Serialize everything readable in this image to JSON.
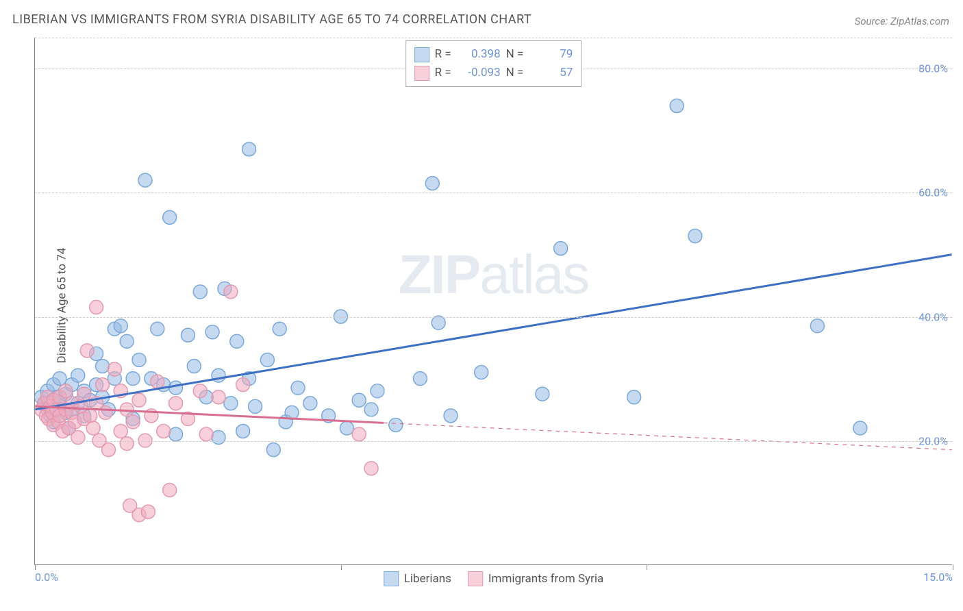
{
  "title": "LIBERIAN VS IMMIGRANTS FROM SYRIA DISABILITY AGE 65 TO 74 CORRELATION CHART",
  "source": "Source: ZipAtlas.com",
  "watermark_bold": "ZIP",
  "watermark_light": "atlas",
  "chart": {
    "type": "scatter",
    "ylabel": "Disability Age 65 to 74",
    "xlim": [
      0,
      15
    ],
    "ylim": [
      0,
      85
    ],
    "x_ticks": [
      0,
      5,
      10,
      15
    ],
    "x_tick_labels": [
      "0.0%",
      "",
      "",
      "15.0%"
    ],
    "y_ticks": [
      20,
      40,
      60,
      80
    ],
    "y_tick_labels": [
      "20.0%",
      "40.0%",
      "60.0%",
      "80.0%"
    ],
    "background_color": "#ffffff",
    "grid_color": "#cccccc",
    "grid_dash": "4,4",
    "axis_color": "#888888",
    "label_color": "#555555",
    "tick_label_color": "#6e94d4",
    "marker_radius": 10,
    "marker_stroke_width": 1.5,
    "trend_line_width": 3,
    "series": [
      {
        "name": "Liberians",
        "fill": "rgba(150,185,230,0.55)",
        "stroke": "#7aa8d8",
        "line_color": "#3d6fc5",
        "r_value": "0.398",
        "n_value": "79",
        "trend": {
          "x1": 0,
          "y1": 25,
          "x2": 15,
          "y2": 50,
          "solid_until_x": 15
        },
        "points": [
          [
            0.1,
            27
          ],
          [
            0.15,
            26
          ],
          [
            0.2,
            28
          ],
          [
            0.2,
            25
          ],
          [
            0.25,
            24
          ],
          [
            0.3,
            29
          ],
          [
            0.3,
            23
          ],
          [
            0.35,
            27
          ],
          [
            0.4,
            26
          ],
          [
            0.4,
            30
          ],
          [
            0.5,
            24.5
          ],
          [
            0.5,
            27.5
          ],
          [
            0.55,
            22
          ],
          [
            0.6,
            29
          ],
          [
            0.6,
            25
          ],
          [
            0.7,
            26
          ],
          [
            0.7,
            30.5
          ],
          [
            0.8,
            28
          ],
          [
            0.8,
            24
          ],
          [
            0.9,
            26.5
          ],
          [
            1.0,
            34
          ],
          [
            1.0,
            29
          ],
          [
            1.1,
            27
          ],
          [
            1.1,
            32
          ],
          [
            1.2,
            25
          ],
          [
            1.3,
            38
          ],
          [
            1.3,
            30
          ],
          [
            1.4,
            38.5
          ],
          [
            1.5,
            36
          ],
          [
            1.6,
            23.5
          ],
          [
            1.6,
            30
          ],
          [
            1.7,
            33
          ],
          [
            1.8,
            62
          ],
          [
            1.9,
            30
          ],
          [
            2.0,
            38
          ],
          [
            2.1,
            29
          ],
          [
            2.2,
            56
          ],
          [
            2.3,
            21
          ],
          [
            2.3,
            28.5
          ],
          [
            2.5,
            37
          ],
          [
            2.6,
            32
          ],
          [
            2.7,
            44
          ],
          [
            2.8,
            27
          ],
          [
            2.9,
            37.5
          ],
          [
            3.0,
            30.5
          ],
          [
            3.0,
            20.5
          ],
          [
            3.1,
            44.5
          ],
          [
            3.2,
            26
          ],
          [
            3.3,
            36
          ],
          [
            3.4,
            21.5
          ],
          [
            3.5,
            67
          ],
          [
            3.5,
            30
          ],
          [
            3.6,
            25.5
          ],
          [
            3.8,
            33
          ],
          [
            3.9,
            18.5
          ],
          [
            4.0,
            38
          ],
          [
            4.1,
            23
          ],
          [
            4.2,
            24.5
          ],
          [
            4.3,
            28.5
          ],
          [
            4.5,
            26
          ],
          [
            4.8,
            24
          ],
          [
            5.0,
            40
          ],
          [
            5.1,
            22
          ],
          [
            5.3,
            26.5
          ],
          [
            5.5,
            25
          ],
          [
            5.6,
            28
          ],
          [
            5.9,
            22.5
          ],
          [
            6.3,
            30
          ],
          [
            6.5,
            61.5
          ],
          [
            6.6,
            39
          ],
          [
            6.8,
            24
          ],
          [
            7.3,
            31
          ],
          [
            8.3,
            27.5
          ],
          [
            8.6,
            51
          ],
          [
            9.8,
            27
          ],
          [
            10.5,
            74
          ],
          [
            10.8,
            53
          ],
          [
            12.8,
            38.5
          ],
          [
            13.5,
            22
          ]
        ]
      },
      {
        "name": "Immigrants from Syria",
        "fill": "rgba(240,170,190,0.55)",
        "stroke": "#e39ab0",
        "line_color": "#d76e8f",
        "r_value": "-0.093",
        "n_value": "57",
        "trend": {
          "x1": 0,
          "y1": 25.5,
          "x2": 15,
          "y2": 18.5,
          "solid_until_x": 5.7
        },
        "points": [
          [
            0.1,
            25
          ],
          [
            0.15,
            26
          ],
          [
            0.18,
            24
          ],
          [
            0.2,
            27
          ],
          [
            0.22,
            23.5
          ],
          [
            0.25,
            25.5
          ],
          [
            0.28,
            24.5
          ],
          [
            0.3,
            26.5
          ],
          [
            0.3,
            22.5
          ],
          [
            0.35,
            25
          ],
          [
            0.38,
            23
          ],
          [
            0.4,
            27
          ],
          [
            0.4,
            24
          ],
          [
            0.45,
            21.5
          ],
          [
            0.5,
            25
          ],
          [
            0.5,
            28
          ],
          [
            0.55,
            22
          ],
          [
            0.6,
            24.5
          ],
          [
            0.6,
            26
          ],
          [
            0.65,
            23
          ],
          [
            0.7,
            20.5
          ],
          [
            0.75,
            25.5
          ],
          [
            0.8,
            27.5
          ],
          [
            0.8,
            23.5
          ],
          [
            0.85,
            34.5
          ],
          [
            0.9,
            24
          ],
          [
            0.95,
            22
          ],
          [
            1.0,
            41.5
          ],
          [
            1.0,
            26
          ],
          [
            1.05,
            20
          ],
          [
            1.1,
            29
          ],
          [
            1.15,
            24.5
          ],
          [
            1.2,
            18.5
          ],
          [
            1.3,
            31.5
          ],
          [
            1.4,
            21.5
          ],
          [
            1.4,
            28
          ],
          [
            1.5,
            25
          ],
          [
            1.5,
            19.5
          ],
          [
            1.55,
            9.5
          ],
          [
            1.6,
            23
          ],
          [
            1.7,
            8
          ],
          [
            1.7,
            26.5
          ],
          [
            1.8,
            20
          ],
          [
            1.85,
            8.5
          ],
          [
            1.9,
            24
          ],
          [
            2.0,
            29.5
          ],
          [
            2.1,
            21.5
          ],
          [
            2.2,
            12
          ],
          [
            2.3,
            26
          ],
          [
            2.5,
            23.5
          ],
          [
            2.7,
            28
          ],
          [
            2.8,
            21
          ],
          [
            3.0,
            27
          ],
          [
            3.2,
            44
          ],
          [
            3.4,
            29
          ],
          [
            5.3,
            21
          ],
          [
            5.5,
            15.5
          ]
        ]
      }
    ],
    "legend_top_labels": {
      "r": "R =",
      "n": "N ="
    },
    "legend_bottom": [
      "Liberians",
      "Immigrants from Syria"
    ]
  }
}
